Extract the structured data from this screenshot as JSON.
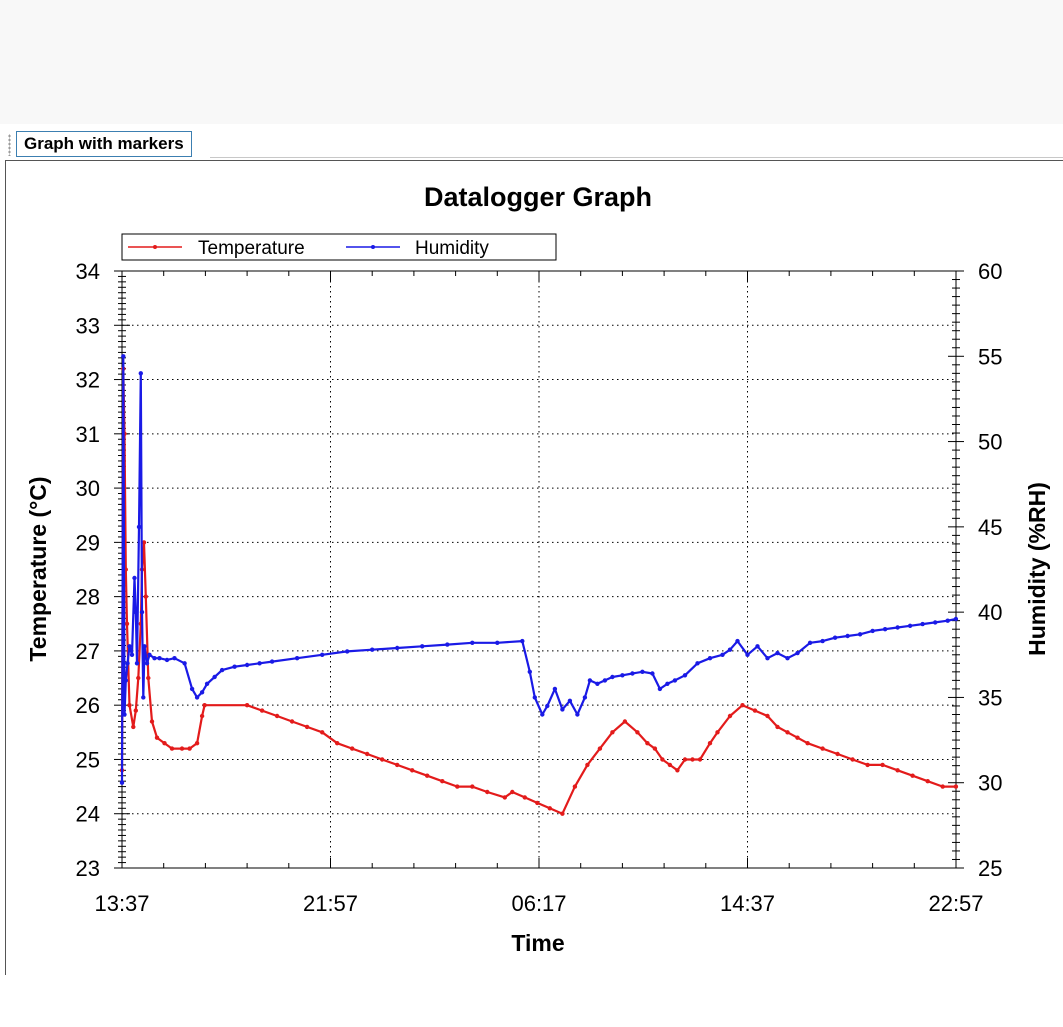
{
  "toolbar": {
    "tab_label": "Graph with markers"
  },
  "chart_data": {
    "type": "line",
    "title": "Datalogger Graph",
    "xlabel": "Time",
    "ylabel_left": "Temperature (°C)",
    "ylabel_right": "Humidity (%RH)",
    "x_ticks": [
      "13:37",
      "21:57",
      "06:17",
      "14:37",
      "22:57"
    ],
    "x_range_hours": [
      0,
      33.333
    ],
    "y_left_range": [
      23,
      34
    ],
    "y_left_ticks": [
      23,
      24,
      25,
      26,
      27,
      28,
      29,
      30,
      31,
      32,
      33,
      34
    ],
    "y_right_range": [
      25,
      60
    ],
    "y_right_ticks": [
      25,
      30,
      35,
      40,
      45,
      50,
      55,
      60
    ],
    "grid": true,
    "legend_position": "top-left",
    "series": [
      {
        "name": "Temperature",
        "axis": "left",
        "color": "#e31b1b",
        "x_hours": [
          0,
          0.05,
          0.1,
          0.15,
          0.2,
          0.3,
          0.45,
          0.55,
          0.65,
          0.75,
          0.8,
          0.88,
          0.95,
          1.05,
          1.2,
          1.4,
          1.7,
          2.0,
          2.4,
          2.7,
          3.0,
          3.2,
          3.3,
          5.0,
          5.6,
          6.2,
          6.8,
          7.4,
          8.0,
          8.6,
          9.2,
          9.8,
          10.4,
          11.0,
          11.6,
          12.2,
          12.8,
          13.4,
          14.0,
          14.6,
          15.3,
          15.6,
          16.1,
          16.6,
          17.1,
          17.6,
          18.1,
          18.6,
          19.1,
          19.6,
          20.1,
          20.6,
          21.0,
          21.3,
          21.6,
          21.9,
          22.2,
          22.5,
          22.8,
          23.1,
          23.5,
          23.8,
          24.3,
          24.8,
          25.3,
          25.8,
          26.2,
          26.6,
          27.0,
          27.4,
          28.0,
          28.6,
          29.2,
          29.8,
          30.4,
          31.0,
          31.6,
          32.2,
          32.8,
          33.33
        ],
        "values": [
          24.8,
          32.2,
          31.0,
          28.5,
          27.5,
          26.0,
          25.6,
          25.9,
          26.5,
          27.5,
          28.5,
          29.0,
          28.0,
          26.5,
          25.7,
          25.4,
          25.3,
          25.2,
          25.2,
          25.2,
          25.3,
          25.8,
          26.0,
          26.0,
          25.9,
          25.8,
          25.7,
          25.6,
          25.5,
          25.3,
          25.2,
          25.1,
          25.0,
          24.9,
          24.8,
          24.7,
          24.6,
          24.5,
          24.5,
          24.4,
          24.3,
          24.4,
          24.3,
          24.2,
          24.1,
          24.0,
          24.5,
          24.9,
          25.2,
          25.5,
          25.7,
          25.5,
          25.3,
          25.2,
          25.0,
          24.9,
          24.8,
          25.0,
          25.0,
          25.0,
          25.3,
          25.5,
          25.8,
          26.0,
          25.9,
          25.8,
          25.6,
          25.5,
          25.4,
          25.3,
          25.2,
          25.1,
          25.0,
          24.9,
          24.9,
          24.8,
          24.7,
          24.6,
          24.5,
          24.5
        ]
      },
      {
        "name": "Humidity",
        "axis": "right",
        "color": "#1a1ae6",
        "x_hours": [
          0,
          0.05,
          0.1,
          0.15,
          0.22,
          0.3,
          0.4,
          0.5,
          0.55,
          0.6,
          0.68,
          0.75,
          0.8,
          0.85,
          0.9,
          1.0,
          1.1,
          1.3,
          1.5,
          1.8,
          2.1,
          2.5,
          2.8,
          3.0,
          3.2,
          3.4,
          3.7,
          4.0,
          4.5,
          5.0,
          5.5,
          6.0,
          7.0,
          8.0,
          9.0,
          10.0,
          11.0,
          12.0,
          13.0,
          14.0,
          15.0,
          16.0,
          16.3,
          16.5,
          16.8,
          17.0,
          17.3,
          17.6,
          17.9,
          18.2,
          18.5,
          18.7,
          19.0,
          19.3,
          19.6,
          20.0,
          20.4,
          20.8,
          21.2,
          21.5,
          21.8,
          22.1,
          22.5,
          23.0,
          23.5,
          24.0,
          24.3,
          24.6,
          25.0,
          25.4,
          25.8,
          26.2,
          26.6,
          27.0,
          27.5,
          28.0,
          28.5,
          29.0,
          29.5,
          30.0,
          30.5,
          31.0,
          31.5,
          32.0,
          32.5,
          33.0,
          33.33
        ],
        "values": [
          30.0,
          55.0,
          34.0,
          36.0,
          37.0,
          38.0,
          37.5,
          42.0,
          40.0,
          37.0,
          45.0,
          54.0,
          40.0,
          35.0,
          38.0,
          37.0,
          37.5,
          37.3,
          37.3,
          37.2,
          37.3,
          37.0,
          35.5,
          35.0,
          35.3,
          35.8,
          36.2,
          36.6,
          36.8,
          36.9,
          37.0,
          37.1,
          37.3,
          37.5,
          37.7,
          37.8,
          37.9,
          38.0,
          38.1,
          38.2,
          38.2,
          38.3,
          36.5,
          35.0,
          34.0,
          34.5,
          35.5,
          34.3,
          34.8,
          34.0,
          35.0,
          36.0,
          35.8,
          36.0,
          36.2,
          36.3,
          36.4,
          36.5,
          36.4,
          35.5,
          35.8,
          36.0,
          36.3,
          37.0,
          37.3,
          37.5,
          37.8,
          38.3,
          37.5,
          38.0,
          37.3,
          37.6,
          37.3,
          37.6,
          38.2,
          38.3,
          38.5,
          38.6,
          38.7,
          38.9,
          39.0,
          39.1,
          39.2,
          39.3,
          39.4,
          39.5,
          39.6
        ]
      }
    ]
  }
}
